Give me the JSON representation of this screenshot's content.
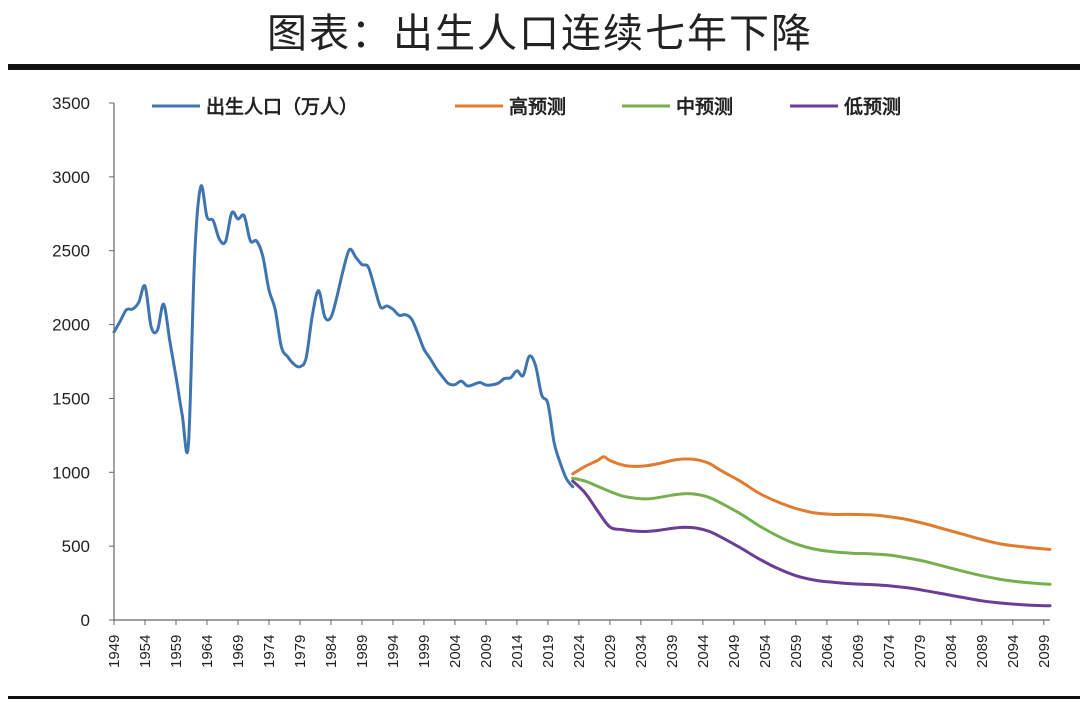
{
  "header": {
    "title": "图表：出生人口连续七年下降"
  },
  "chart_data": {
    "type": "line",
    "title": "图表：出生人口连续七年下降",
    "xlabel": "",
    "ylabel": "",
    "xlim": [
      1949,
      2100
    ],
    "ylim": [
      0,
      3500
    ],
    "yticks": [
      0,
      500,
      1000,
      1500,
      2000,
      2500,
      3000,
      3500
    ],
    "xticks": [
      1949,
      1954,
      1959,
      1964,
      1969,
      1974,
      1979,
      1984,
      1989,
      1994,
      1999,
      2004,
      2009,
      2014,
      2019,
      2024,
      2029,
      2034,
      2039,
      2044,
      2049,
      2054,
      2059,
      2064,
      2069,
      2074,
      2079,
      2084,
      2089,
      2094,
      2099
    ],
    "grid": false,
    "legend_position": "top",
    "series": [
      {
        "name": "出生人口（万人）",
        "color": "#3e75b0",
        "points": [
          [
            1949,
            1950
          ],
          [
            1950,
            2023
          ],
          [
            1951,
            2100
          ],
          [
            1952,
            2105
          ],
          [
            1953,
            2151
          ],
          [
            1954,
            2260
          ],
          [
            1955,
            1984
          ],
          [
            1956,
            1961
          ],
          [
            1957,
            2138
          ],
          [
            1958,
            1889
          ],
          [
            1959,
            1647
          ],
          [
            1960,
            1389
          ],
          [
            1961,
            1187
          ],
          [
            1962,
            2451
          ],
          [
            1963,
            2934
          ],
          [
            1964,
            2729
          ],
          [
            1965,
            2704
          ],
          [
            1966,
            2577
          ],
          [
            1967,
            2563
          ],
          [
            1968,
            2757
          ],
          [
            1969,
            2715
          ],
          [
            1970,
            2736
          ],
          [
            1971,
            2567
          ],
          [
            1972,
            2566
          ],
          [
            1973,
            2463
          ],
          [
            1974,
            2234
          ],
          [
            1975,
            2102
          ],
          [
            1976,
            1849
          ],
          [
            1977,
            1783
          ],
          [
            1978,
            1733
          ],
          [
            1979,
            1715
          ],
          [
            1980,
            1776
          ],
          [
            1981,
            2064
          ],
          [
            1982,
            2230
          ],
          [
            1983,
            2052
          ],
          [
            1984,
            2050
          ],
          [
            1985,
            2196
          ],
          [
            1986,
            2374
          ],
          [
            1987,
            2508
          ],
          [
            1988,
            2457
          ],
          [
            1989,
            2407
          ],
          [
            1990,
            2391
          ],
          [
            1991,
            2258
          ],
          [
            1992,
            2119
          ],
          [
            1993,
            2126
          ],
          [
            1994,
            2104
          ],
          [
            1995,
            2063
          ],
          [
            1996,
            2067
          ],
          [
            1997,
            2038
          ],
          [
            1998,
            1942
          ],
          [
            1999,
            1834
          ],
          [
            2000,
            1771
          ],
          [
            2001,
            1702
          ],
          [
            2002,
            1647
          ],
          [
            2003,
            1599
          ],
          [
            2004,
            1593
          ],
          [
            2005,
            1617
          ],
          [
            2006,
            1585
          ],
          [
            2007,
            1594
          ],
          [
            2008,
            1608
          ],
          [
            2009,
            1591
          ],
          [
            2010,
            1592
          ],
          [
            2011,
            1604
          ],
          [
            2012,
            1635
          ],
          [
            2013,
            1640
          ],
          [
            2014,
            1687
          ],
          [
            2015,
            1655
          ],
          [
            2016,
            1786
          ],
          [
            2017,
            1723
          ],
          [
            2018,
            1523
          ],
          [
            2019,
            1465
          ],
          [
            2020,
            1202
          ],
          [
            2021,
            1062
          ],
          [
            2022,
            956
          ],
          [
            2023,
            902
          ]
        ]
      },
      {
        "name": "高预测",
        "color": "#e07b30",
        "points": [
          [
            2023,
            990
          ],
          [
            2025,
            1040
          ],
          [
            2027,
            1080
          ],
          [
            2028,
            1105
          ],
          [
            2029,
            1080
          ],
          [
            2031,
            1050
          ],
          [
            2033,
            1040
          ],
          [
            2035,
            1045
          ],
          [
            2037,
            1060
          ],
          [
            2039,
            1080
          ],
          [
            2041,
            1090
          ],
          [
            2043,
            1085
          ],
          [
            2045,
            1060
          ],
          [
            2047,
            1010
          ],
          [
            2050,
            940
          ],
          [
            2053,
            860
          ],
          [
            2056,
            800
          ],
          [
            2059,
            755
          ],
          [
            2062,
            725
          ],
          [
            2065,
            715
          ],
          [
            2068,
            715
          ],
          [
            2071,
            712
          ],
          [
            2074,
            700
          ],
          [
            2077,
            680
          ],
          [
            2080,
            650
          ],
          [
            2083,
            615
          ],
          [
            2086,
            580
          ],
          [
            2089,
            545
          ],
          [
            2092,
            515
          ],
          [
            2095,
            498
          ],
          [
            2098,
            485
          ],
          [
            2100,
            478
          ]
        ]
      },
      {
        "name": "中预测",
        "color": "#76b04e",
        "points": [
          [
            2023,
            960
          ],
          [
            2025,
            940
          ],
          [
            2027,
            905
          ],
          [
            2029,
            870
          ],
          [
            2031,
            840
          ],
          [
            2033,
            825
          ],
          [
            2035,
            820
          ],
          [
            2037,
            830
          ],
          [
            2039,
            845
          ],
          [
            2041,
            855
          ],
          [
            2043,
            850
          ],
          [
            2045,
            830
          ],
          [
            2047,
            790
          ],
          [
            2050,
            720
          ],
          [
            2053,
            640
          ],
          [
            2056,
            570
          ],
          [
            2059,
            515
          ],
          [
            2062,
            480
          ],
          [
            2065,
            462
          ],
          [
            2068,
            452
          ],
          [
            2071,
            448
          ],
          [
            2074,
            440
          ],
          [
            2077,
            420
          ],
          [
            2080,
            395
          ],
          [
            2083,
            362
          ],
          [
            2086,
            330
          ],
          [
            2089,
            300
          ],
          [
            2092,
            275
          ],
          [
            2095,
            258
          ],
          [
            2098,
            247
          ],
          [
            2100,
            242
          ]
        ]
      },
      {
        "name": "低预测",
        "color": "#6a3d96",
        "points": [
          [
            2023,
            940
          ],
          [
            2025,
            860
          ],
          [
            2027,
            740
          ],
          [
            2029,
            630
          ],
          [
            2031,
            612
          ],
          [
            2033,
            602
          ],
          [
            2035,
            600
          ],
          [
            2037,
            608
          ],
          [
            2039,
            620
          ],
          [
            2041,
            628
          ],
          [
            2043,
            622
          ],
          [
            2045,
            600
          ],
          [
            2047,
            560
          ],
          [
            2050,
            490
          ],
          [
            2053,
            415
          ],
          [
            2056,
            350
          ],
          [
            2059,
            300
          ],
          [
            2062,
            270
          ],
          [
            2065,
            255
          ],
          [
            2068,
            245
          ],
          [
            2071,
            240
          ],
          [
            2074,
            232
          ],
          [
            2077,
            218
          ],
          [
            2080,
            198
          ],
          [
            2083,
            175
          ],
          [
            2086,
            152
          ],
          [
            2089,
            130
          ],
          [
            2092,
            115
          ],
          [
            2095,
            105
          ],
          [
            2098,
            98
          ],
          [
            2100,
            96
          ]
        ]
      }
    ]
  }
}
